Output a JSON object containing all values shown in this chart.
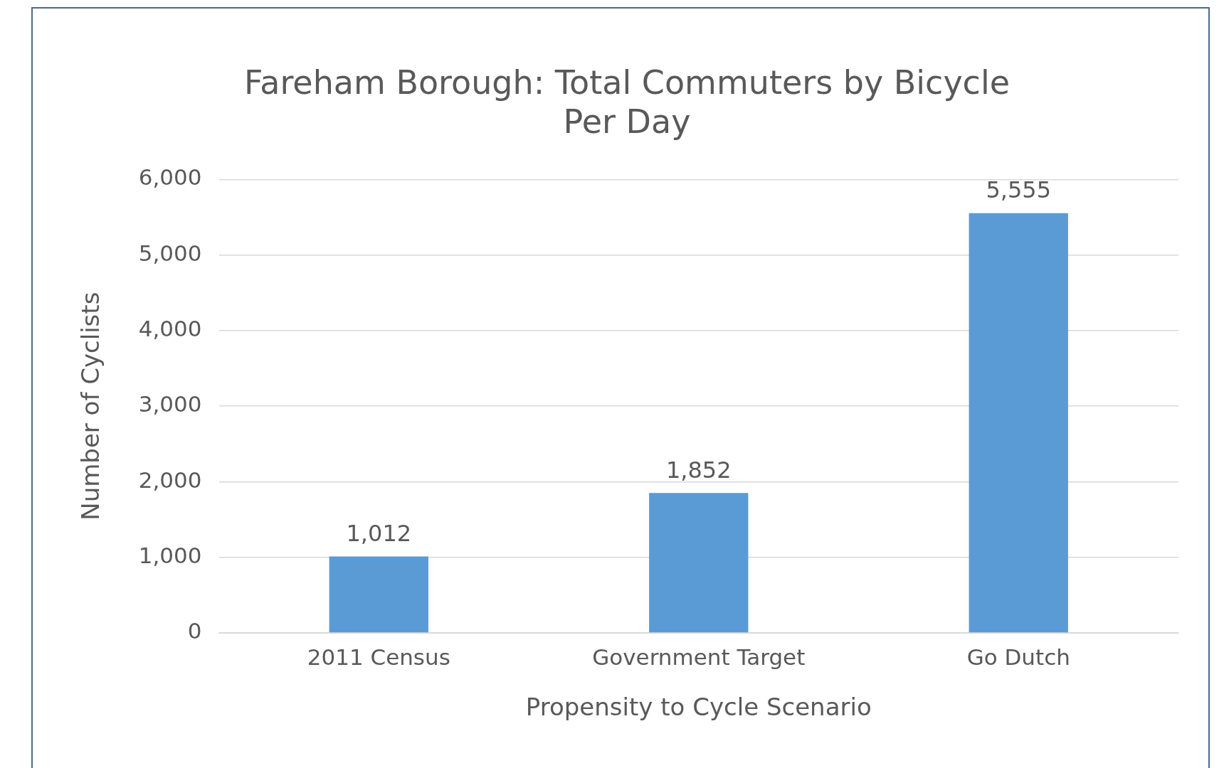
{
  "chart_data": {
    "type": "bar",
    "title": "Fareham Borough: Total Commuters by Bicycle Per Day",
    "xlabel": "Propensity to Cycle Scenario",
    "ylabel": "Number of Cyclists",
    "categories": [
      "2011 Census",
      "Government Target",
      "Go Dutch"
    ],
    "values": [
      1012,
      1852,
      5555
    ],
    "color": "#5b9bd5",
    "ylim": [
      0,
      6000
    ],
    "yticks": [
      {
        "value": 0,
        "label": "0"
      },
      {
        "value": 1000,
        "label": "1,000"
      },
      {
        "value": 2000,
        "label": "2,000"
      },
      {
        "value": 3000,
        "label": "3,000"
      },
      {
        "value": 4000,
        "label": "4,000"
      },
      {
        "value": 5000,
        "label": "5,000"
      },
      {
        "value": 6000,
        "label": "6,000"
      }
    ],
    "value_labels": [
      "1,012",
      "1,852",
      "5,555"
    ],
    "grid": "y",
    "legend": false
  }
}
